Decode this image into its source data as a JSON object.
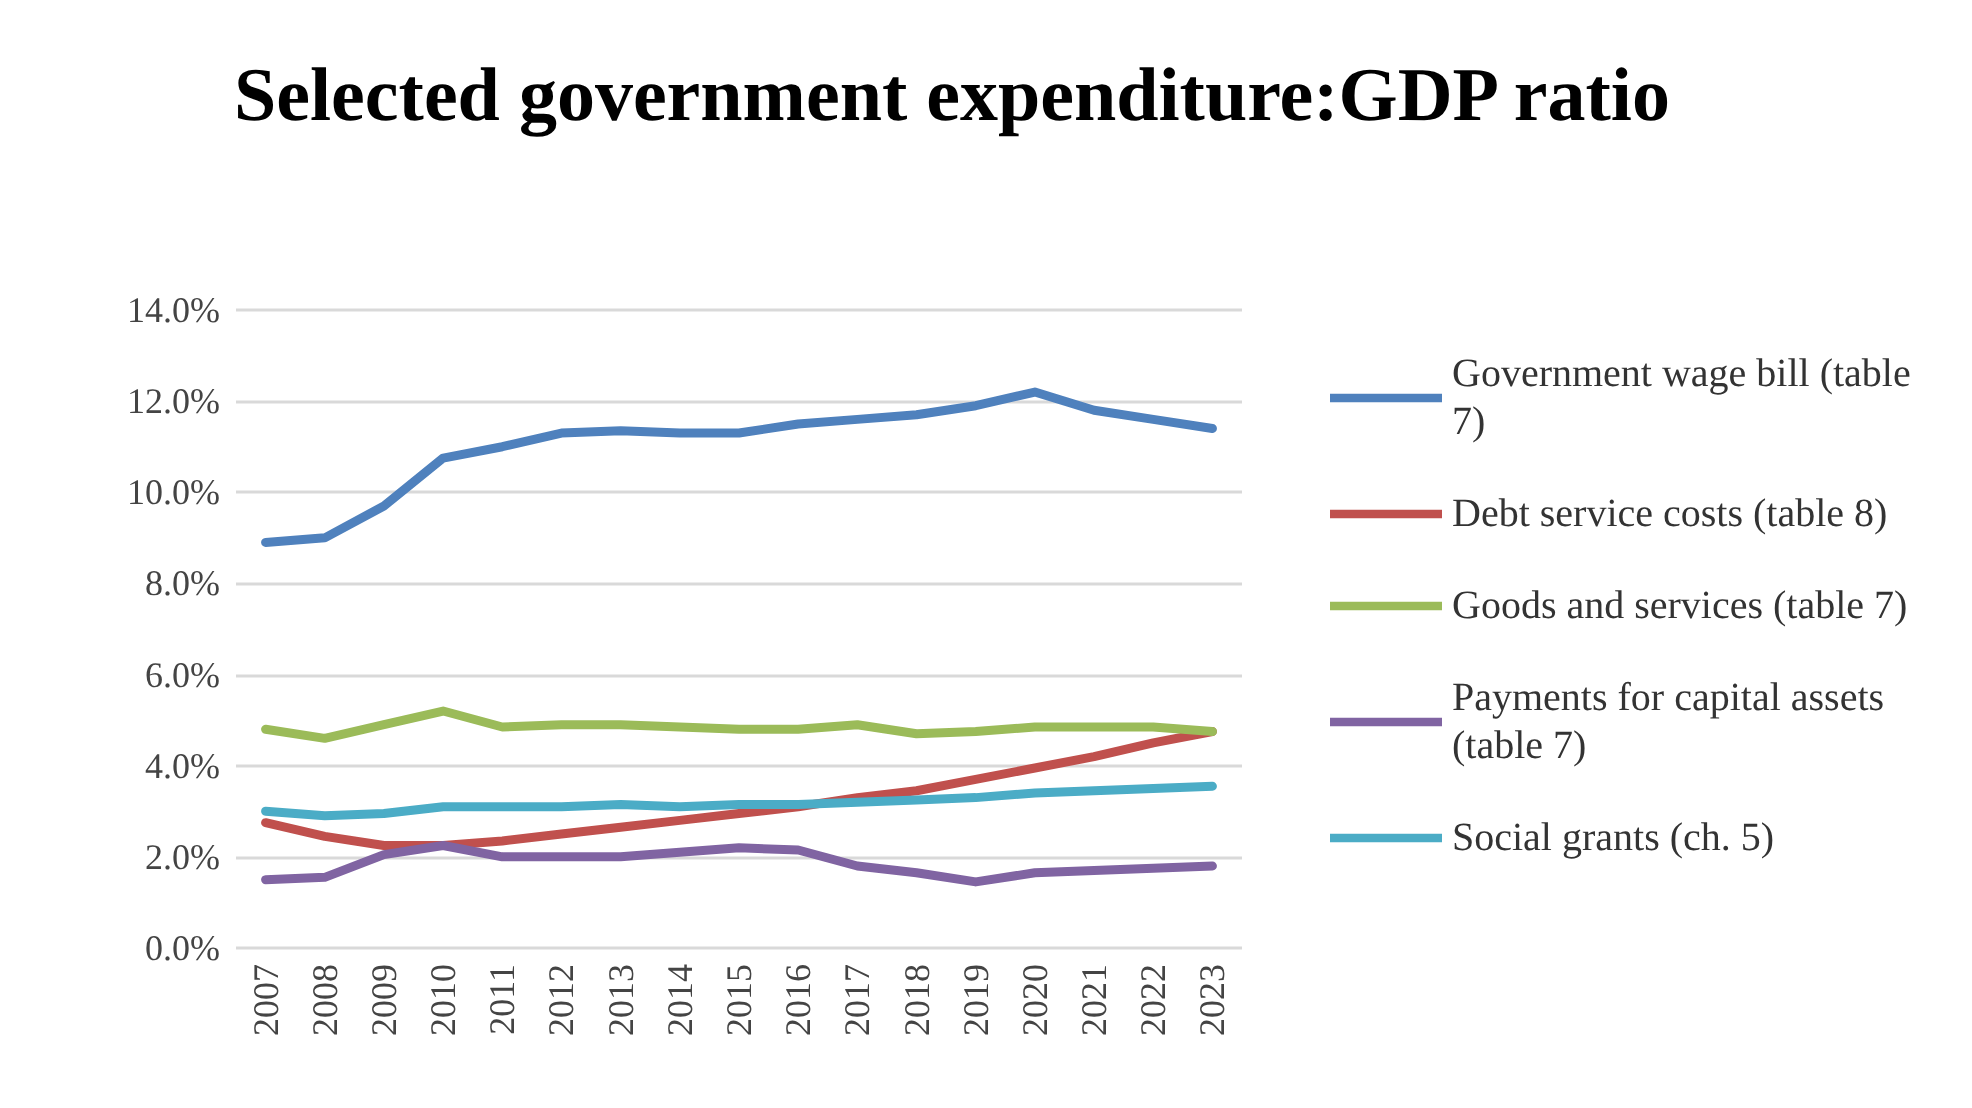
{
  "chart_data": {
    "type": "line",
    "title": "Selected government expenditure:GDP ratio",
    "categories": [
      "2007",
      "2008",
      "2009",
      "2010",
      "2011",
      "2012",
      "2013",
      "2014",
      "2015",
      "2016",
      "2017",
      "2018",
      "2019",
      "2020",
      "2021",
      "2022",
      "2023"
    ],
    "series": [
      {
        "name": "Government wage bill (table 7)",
        "color": "#4f81bd",
        "values": [
          8.9,
          9.0,
          9.7,
          10.75,
          11.0,
          11.3,
          11.35,
          11.3,
          11.3,
          11.5,
          11.6,
          11.7,
          11.9,
          12.2,
          11.8,
          11.6,
          11.4
        ]
      },
      {
        "name": "Debt service costs (table 8)",
        "color": "#c0504d",
        "values": [
          2.75,
          2.45,
          2.25,
          2.25,
          2.35,
          2.5,
          2.65,
          2.8,
          2.95,
          3.1,
          3.3,
          3.45,
          3.7,
          3.95,
          4.2,
          4.5,
          4.75
        ]
      },
      {
        "name": "Goods and services (table 7)",
        "color": "#9bbb59",
        "values": [
          4.8,
          4.6,
          4.9,
          5.2,
          4.85,
          4.9,
          4.9,
          4.85,
          4.8,
          4.8,
          4.9,
          4.7,
          4.75,
          4.85,
          4.85,
          4.85,
          4.75
        ]
      },
      {
        "name": "Payments for capital assets (table 7)",
        "color": "#8064a2",
        "values": [
          1.5,
          1.55,
          2.05,
          2.25,
          2.0,
          2.0,
          2.0,
          2.1,
          2.2,
          2.15,
          1.8,
          1.65,
          1.45,
          1.65,
          1.7,
          1.75,
          1.8
        ]
      },
      {
        "name": "Social grants (ch. 5)",
        "color": "#4bacc6",
        "values": [
          3.0,
          2.9,
          2.95,
          3.1,
          3.1,
          3.1,
          3.15,
          3.1,
          3.15,
          3.15,
          3.2,
          3.25,
          3.3,
          3.4,
          3.45,
          3.5,
          3.55
        ]
      }
    ],
    "ylim": [
      0,
      14
    ],
    "yticks": [
      {
        "value": 0,
        "label": "0.0%"
      },
      {
        "value": 2,
        "label": "2.0%"
      },
      {
        "value": 4,
        "label": "4.0%"
      },
      {
        "value": 6,
        "label": "6.0%"
      },
      {
        "value": 8,
        "label": "8.0%"
      },
      {
        "value": 10,
        "label": "10.0%"
      },
      {
        "value": 12,
        "label": "12.0%"
      },
      {
        "value": 14,
        "label": "14.0%"
      }
    ],
    "grid": "y",
    "legend": "right",
    "marker": "none",
    "line_style": "solid"
  }
}
